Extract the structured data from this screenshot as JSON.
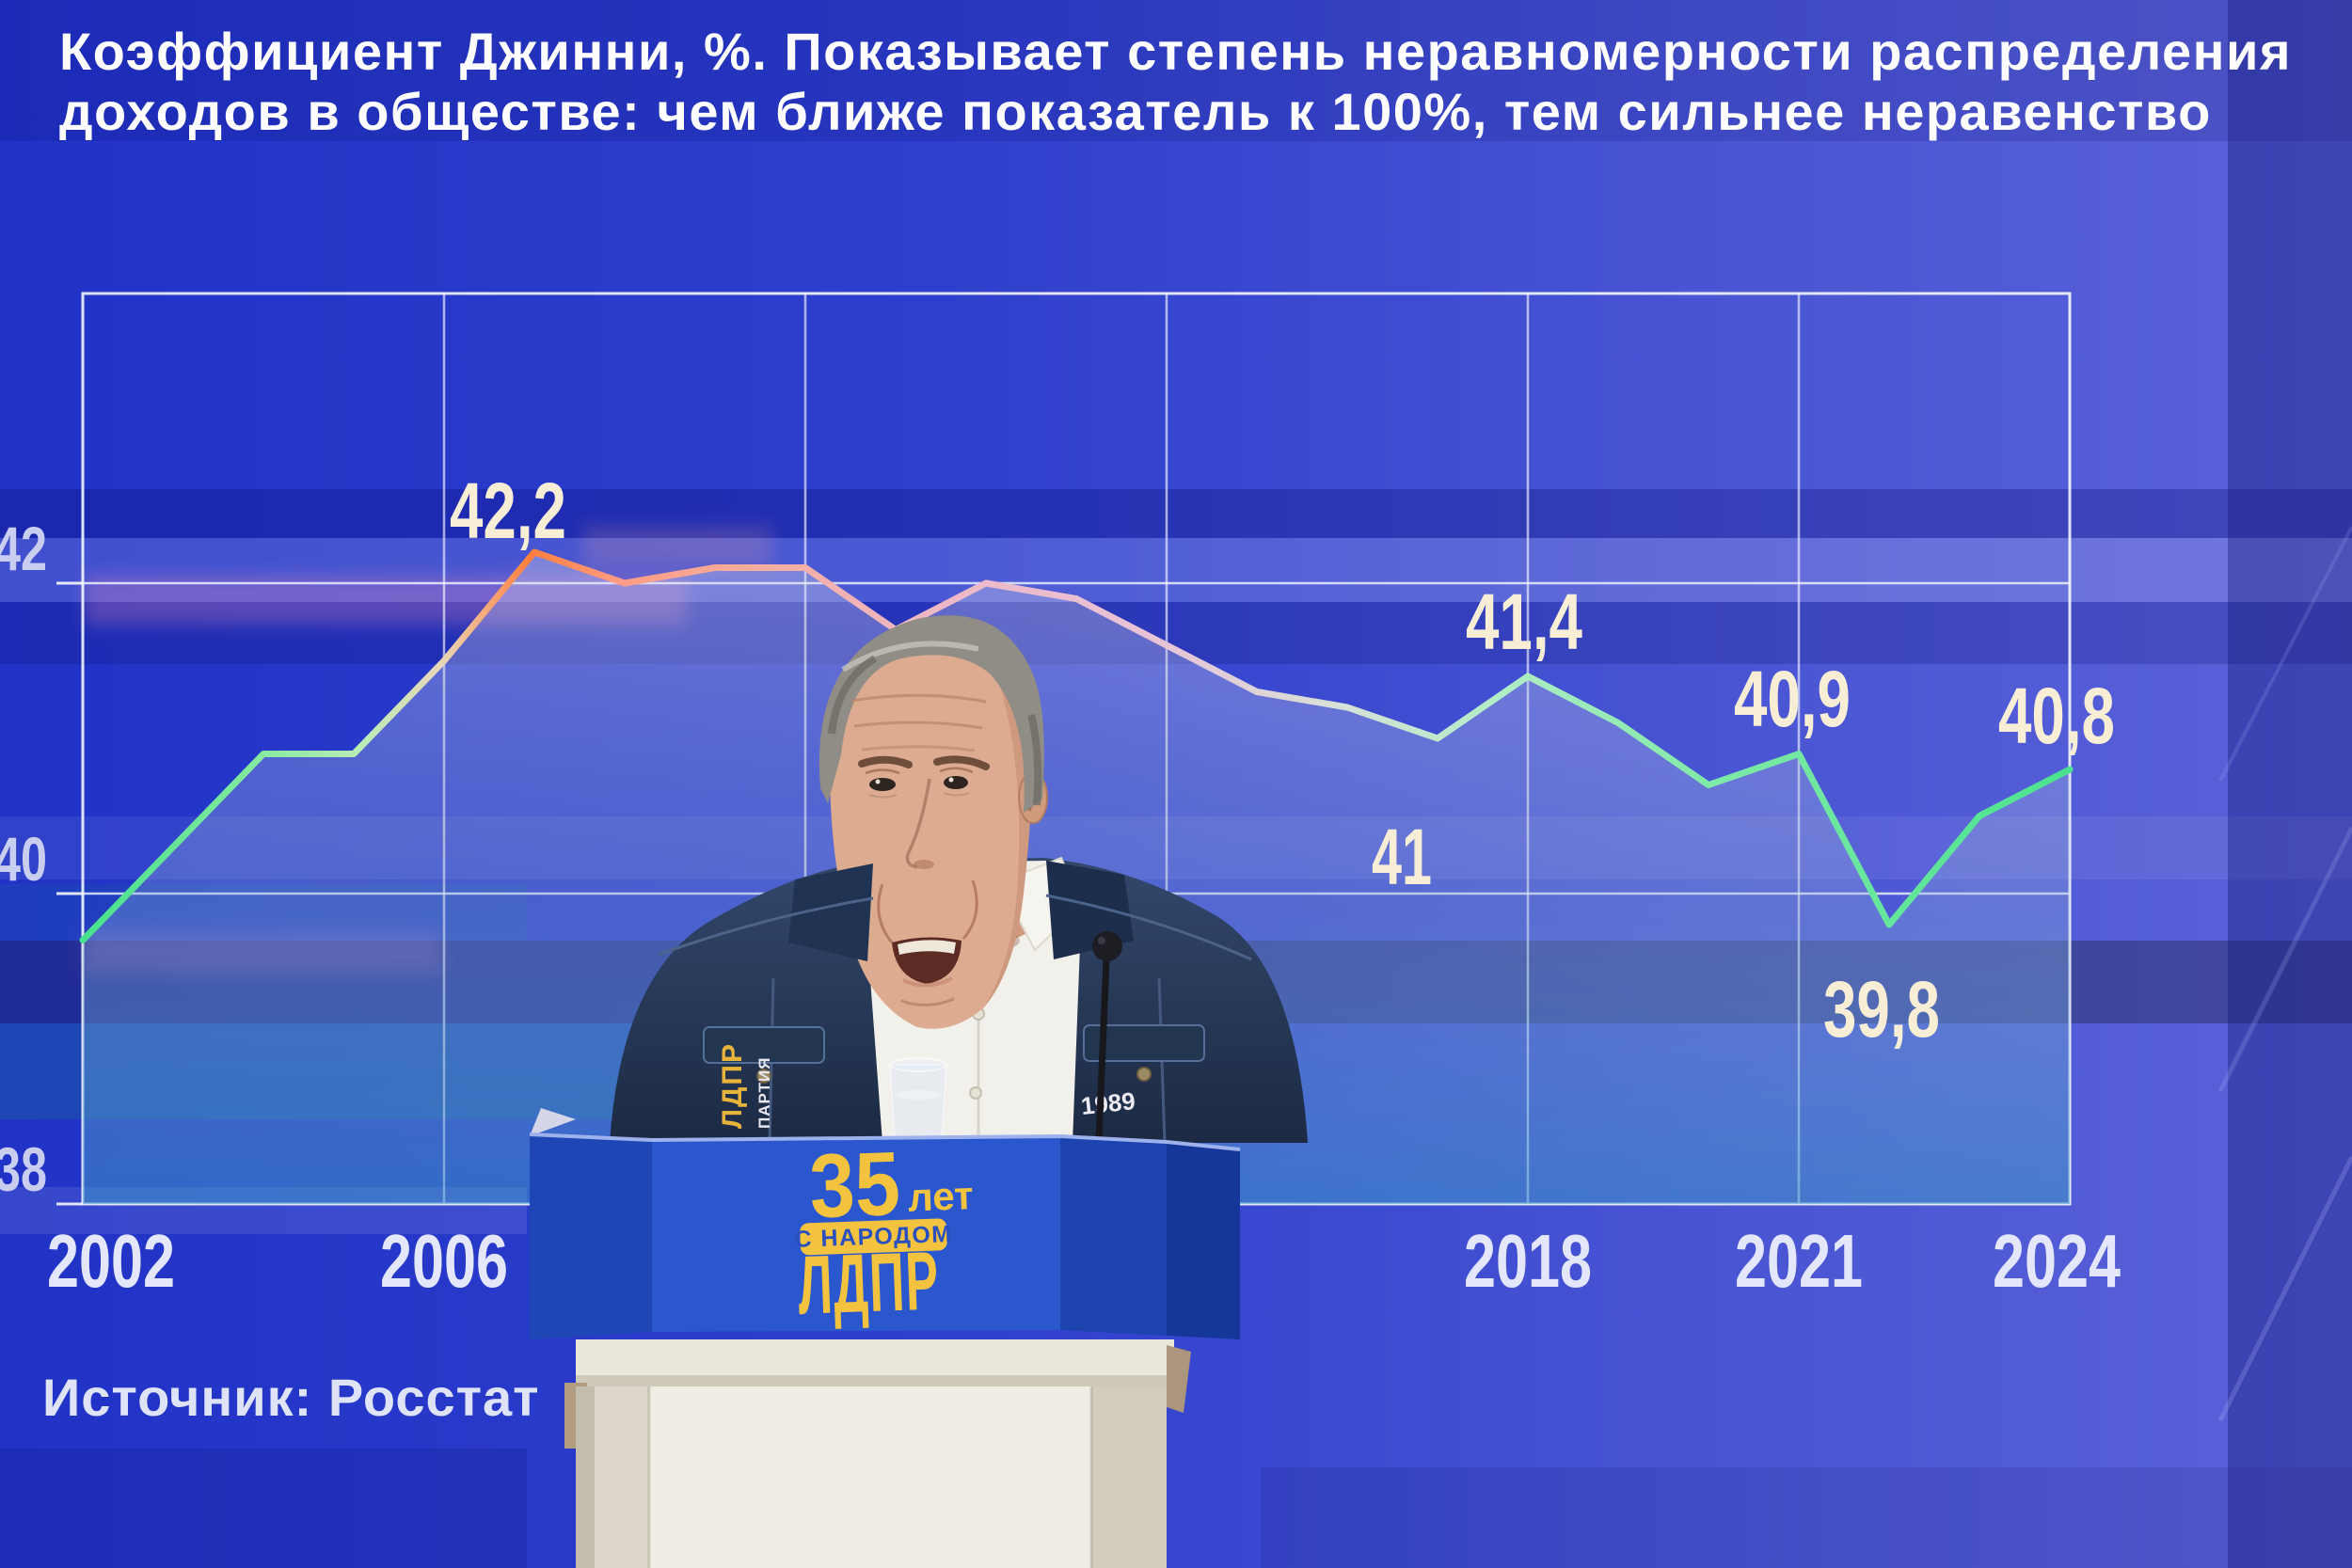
{
  "slide": {
    "title_line1": "Коэффициент Джинни, %. Показывает степень неравномерности распределения",
    "title_line2": "доходов в обществе: чем ближе показатель к 100%, тем сильнее неравенство",
    "source": "Источник: Росстат"
  },
  "chart_data": {
    "type": "line",
    "title": "Коэффициент Джинни, %",
    "years": [
      2002,
      2003,
      2004,
      2005,
      2006,
      2007,
      2008,
      2009,
      2010,
      2011,
      2012,
      2013,
      2014,
      2015,
      2016,
      2017,
      2018,
      2019,
      2020,
      2021,
      2022,
      2023,
      2024
    ],
    "values": [
      39.7,
      40.3,
      40.9,
      40.9,
      41.5,
      42.2,
      42.0,
      42.1,
      42.1,
      41.7,
      42.0,
      41.9,
      41.6,
      41.3,
      41.2,
      41.0,
      41.4,
      41.1,
      40.7,
      40.9,
      39.8,
      40.5,
      40.8
    ],
    "labeled_points": [
      {
        "year": 2007,
        "label": "42,2"
      },
      {
        "year": 2017,
        "label": "41"
      },
      {
        "year": 2018,
        "label": "41,4"
      },
      {
        "year": 2021,
        "label": "40,9"
      },
      {
        "year": 2022,
        "label": "39,8"
      },
      {
        "year": 2024,
        "label": "40,8"
      }
    ],
    "y_ticks": [
      {
        "label": "42",
        "value": 42
      },
      {
        "label": "40",
        "value": 40
      },
      {
        "label": "38",
        "value": 38
      }
    ],
    "x_tick_labels": [
      {
        "label": "2002",
        "year": 2002
      },
      {
        "label": "2006",
        "year": 2006
      },
      {
        "label": "2018",
        "year": 2018
      },
      {
        "label": "2021",
        "year": 2021
      },
      {
        "label": "2024",
        "year": 2024
      }
    ],
    "ylim": [
      38,
      43.9
    ],
    "grid": true,
    "legend_position": "none"
  },
  "podium": {
    "years_number": "35",
    "years_word": "лет",
    "badge": "С НАРОДОМ",
    "party": "ЛДПР"
  },
  "speaker": {
    "jacket_patch_line1": "ЛДПР",
    "jacket_patch_line2": "ПАРТИЯ",
    "jacket_year": "1989"
  },
  "colors": {
    "background_blue": "#2e3ccd",
    "panel_blue": "#2a57cd",
    "logo_yellow": "#f3c340",
    "label_cream": "#f8eed6",
    "tick_lavender": "#c9cdf0",
    "grid_white": "#eef1fc",
    "line_green": "#45e28b",
    "line_orange": "#ff7e3d",
    "denim_navy": "#263a5c"
  }
}
